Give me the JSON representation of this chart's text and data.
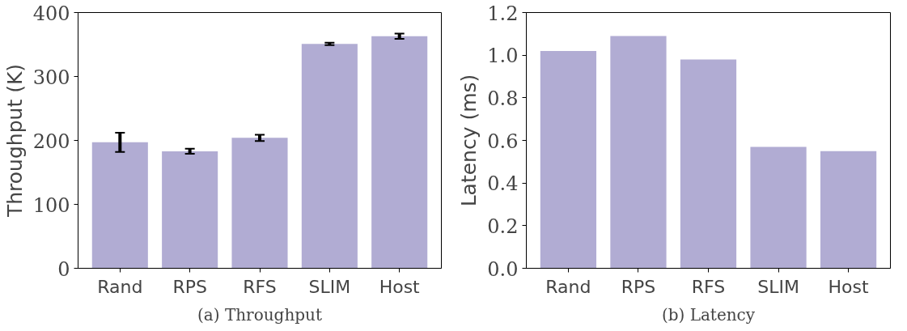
{
  "chart_data": [
    {
      "type": "bar",
      "title": "(a) Throughput",
      "ylabel": "Throughput (K)",
      "categories": [
        "Rand",
        "RPS",
        "RFS",
        "SLIM",
        "Host"
      ],
      "values": [
        197,
        183,
        204,
        351,
        363
      ],
      "errors": [
        15,
        4,
        5,
        2,
        4
      ],
      "color": "#b1acd3",
      "ylim": [
        0,
        400
      ],
      "yticks": [
        0,
        100,
        200,
        300,
        400
      ],
      "grid": false
    },
    {
      "type": "bar",
      "title": "(b) Latency",
      "ylabel": "Latency (ms)",
      "categories": [
        "Rand",
        "RPS",
        "RFS",
        "SLIM",
        "Host"
      ],
      "values": [
        1.02,
        1.09,
        0.98,
        0.57,
        0.55
      ],
      "color": "#b1acd3",
      "ylim": [
        0,
        1.2
      ],
      "yticks": [
        {
          "value": 0,
          "label": "0.0"
        },
        {
          "value": 0.2,
          "label": "0.2"
        },
        {
          "value": 0.4,
          "label": "0.4"
        },
        {
          "value": 0.6,
          "label": "0.6"
        },
        {
          "value": 0.8,
          "label": "0.8"
        },
        {
          "value": 1.0,
          "label": "1.0"
        },
        {
          "value": 1.2,
          "label": "1.2"
        }
      ],
      "grid": false
    }
  ]
}
